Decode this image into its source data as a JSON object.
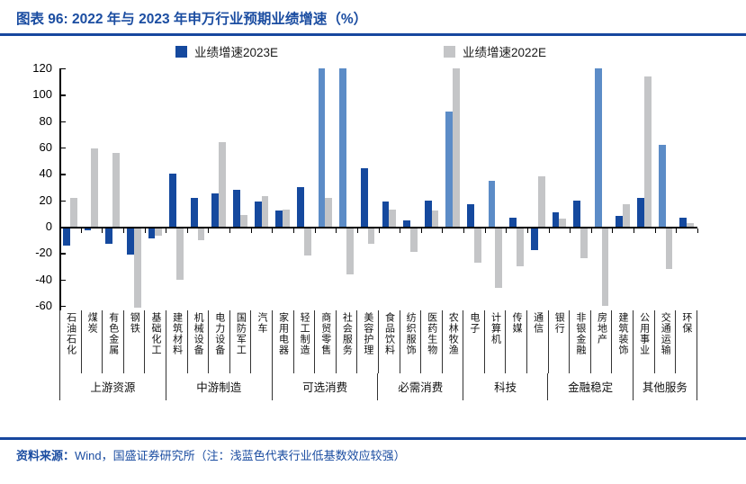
{
  "header": {
    "title": "图表 96:  2022 年与 2023 年申万行业预期业绩增速（%）"
  },
  "footer": {
    "prefix": "资料来源：",
    "note": "Wind，国盛证券研究所（注：浅蓝色代表行业低基数效应较强）"
  },
  "colors": {
    "accent_blue": "#17479E",
    "bar_blue": "#15499E",
    "bar_light_blue": "#5C8CC7",
    "bar_gray": "#C4C5C7"
  },
  "chart_data": {
    "type": "bar",
    "title": "2022年与2023年申万行业预期业绩增速（%）",
    "legend": [
      "业绩增速2023E",
      "业绩增速2022E"
    ],
    "legend_position": "top",
    "ylim": [
      -60,
      120
    ],
    "yticks": [
      120,
      100,
      80,
      60,
      40,
      20,
      0,
      -20,
      -40,
      -60
    ],
    "grid": false,
    "categories": [
      "石油石化",
      "煤炭",
      "有色金属",
      "钢铁",
      "基础化工",
      "建筑材料",
      "机械设备",
      "电力设备",
      "国防军工",
      "汽车",
      "家用电器",
      "轻工制造",
      "商贸零售",
      "社会服务",
      "美容护理",
      "食品饮料",
      "纺织服饰",
      "医药生物",
      "农林牧渔",
      "电子",
      "计算机",
      "传媒",
      "通信",
      "银行",
      "非银金融",
      "房地产",
      "建筑装饰",
      "公用事业",
      "交通运输",
      "环保"
    ],
    "groups": [
      {
        "label": "上游资源",
        "count": 5
      },
      {
        "label": "中游制造",
        "count": 5
      },
      {
        "label": "可选消费",
        "count": 5
      },
      {
        "label": "必需消费",
        "count": 4
      },
      {
        "label": "科技",
        "count": 4
      },
      {
        "label": "金融稳定",
        "count": 4
      },
      {
        "label": "其他服务",
        "count": 3
      }
    ],
    "series": [
      {
        "name": "业绩增速2023E",
        "values": [
          -13,
          -2,
          -12,
          -20,
          -8,
          40,
          22,
          25,
          28,
          19,
          12,
          30,
          120,
          120,
          44,
          19,
          5,
          20,
          87,
          17,
          35,
          7,
          -17,
          11,
          20,
          120,
          8,
          22,
          62,
          7
        ]
      },
      {
        "name": "业绩增速2022E",
        "values": [
          22,
          59,
          56,
          -60,
          -6,
          -39,
          -9,
          64,
          9,
          23,
          13,
          -21,
          22,
          -35,
          -12,
          13,
          -18,
          12,
          120,
          -26,
          -45,
          -29,
          38,
          6,
          -23,
          -59,
          17,
          114,
          -31,
          3
        ]
      }
    ],
    "low_base_light_blue_indices": [
      12,
      13,
      18,
      20,
      25,
      28
    ],
    "clipped_at_axis_max": {
      "业绩增速2023E": [
        12,
        13,
        25
      ],
      "业绩增速2022E": [
        18
      ]
    },
    "note": "浅蓝色代表行业低基数效应较强"
  }
}
